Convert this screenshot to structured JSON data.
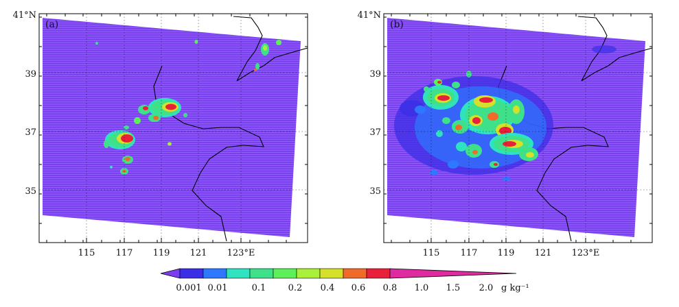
{
  "colors": {
    "domain_fill": "#7b3cf0",
    "stripe": "#9a8cff",
    "palette": [
      "#7b3cf0",
      "#3b2fe6",
      "#2e78ff",
      "#2fe3c0",
      "#3fe08a",
      "#5ef05a",
      "#a8f03a",
      "#d4e02a",
      "#f06a2a",
      "#e8203a",
      "#e02aa0"
    ]
  },
  "panels": [
    {
      "label": "(a)",
      "ytick_labels": [
        "41°N",
        "39",
        "37",
        "35"
      ],
      "xtick_labels": [
        "115",
        "117",
        "119",
        "121",
        "123°E"
      ]
    },
    {
      "label": "(b)",
      "ytick_labels": [
        "41°N",
        "39",
        "37",
        "35"
      ],
      "xtick_labels": [
        "115",
        "117",
        "119",
        "121",
        "123°E"
      ]
    }
  ],
  "colorbar": {
    "tick_labels": [
      "0.001",
      "0.01",
      "0.1",
      "0.2",
      "0.4",
      "0.6",
      "0.8",
      "1.0",
      "1.5",
      "2.0"
    ],
    "unit": "g kg⁻¹"
  }
}
